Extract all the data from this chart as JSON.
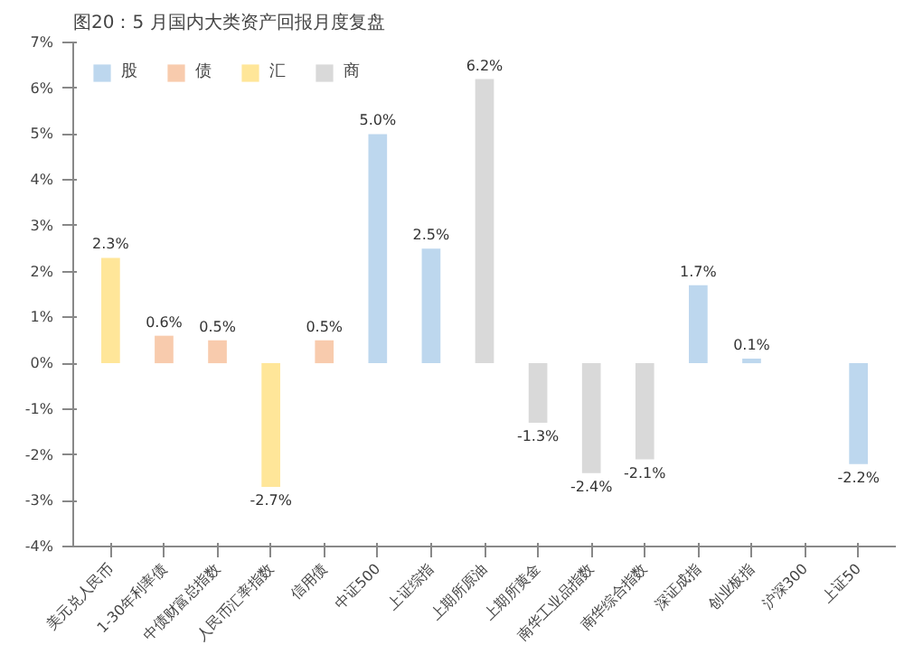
{
  "chart_data": {
    "type": "bar",
    "title": "图20：5 月国内大类资产回报月度复盘",
    "categories": [
      "美元兑人民币",
      "1-30年利率债",
      "中债财富总指数",
      "人民币汇率指数",
      "信用债",
      "中证500",
      "上证综指",
      "上期所原油",
      "上期所黄金",
      "南华工业品指数",
      "南华综合指数",
      "深证成指",
      "创业板指",
      "沪深300",
      "上证50"
    ],
    "stacked": true,
    "series": [
      {
        "name": "股",
        "color": "#bdd7ee",
        "values": [
          null,
          null,
          null,
          null,
          null,
          5.0,
          2.5,
          null,
          null,
          null,
          null,
          1.7,
          0.1,
          null,
          -2.2
        ],
        "value_labels": [
          null,
          null,
          null,
          null,
          null,
          "5.0%",
          "2.5%",
          null,
          null,
          null,
          null,
          "1.7%",
          "0.1%",
          null,
          "-2.2%"
        ]
      },
      {
        "name": "债",
        "color": "#f8cbad",
        "values": [
          null,
          0.6,
          0.5,
          null,
          0.5,
          null,
          null,
          null,
          null,
          null,
          null,
          null,
          null,
          null,
          null
        ],
        "value_labels": [
          null,
          "0.6%",
          "0.5%",
          null,
          "0.5%",
          null,
          null,
          null,
          null,
          null,
          null,
          null,
          null,
          null,
          null
        ]
      },
      {
        "name": "汇",
        "color": "#ffe699",
        "values": [
          2.3,
          null,
          null,
          -2.7,
          null,
          null,
          null,
          null,
          null,
          null,
          null,
          null,
          null,
          null,
          null
        ],
        "value_labels": [
          "2.3%",
          null,
          null,
          "-2.7%",
          null,
          null,
          null,
          null,
          null,
          null,
          null,
          null,
          null,
          null,
          null
        ]
      },
      {
        "name": "商",
        "color": "#d9d9d9",
        "values": [
          null,
          null,
          null,
          null,
          null,
          null,
          null,
          6.2,
          -1.3,
          -2.4,
          -2.1,
          null,
          null,
          null,
          null
        ],
        "value_labels": [
          null,
          null,
          null,
          null,
          null,
          null,
          null,
          "6.2%",
          "-1.3%",
          "-2.4%",
          "-2.1%",
          null,
          null,
          null,
          null
        ]
      }
    ],
    "ylim": [
      -4,
      7
    ],
    "yticks": [
      {
        "value": -4,
        "label": "-4%"
      },
      {
        "value": -3,
        "label": "-3%"
      },
      {
        "value": -2,
        "label": "-2%"
      },
      {
        "value": -1,
        "label": "-1%"
      },
      {
        "value": 0,
        "label": "0%"
      },
      {
        "value": 1,
        "label": "1%"
      },
      {
        "value": 2,
        "label": "2%"
      },
      {
        "value": 3,
        "label": "3%"
      },
      {
        "value": 4,
        "label": "4%"
      },
      {
        "value": 5,
        "label": "5%"
      },
      {
        "value": 6,
        "label": "6%"
      },
      {
        "value": 7,
        "label": "7%"
      }
    ],
    "grid": false,
    "legend": "top left"
  }
}
